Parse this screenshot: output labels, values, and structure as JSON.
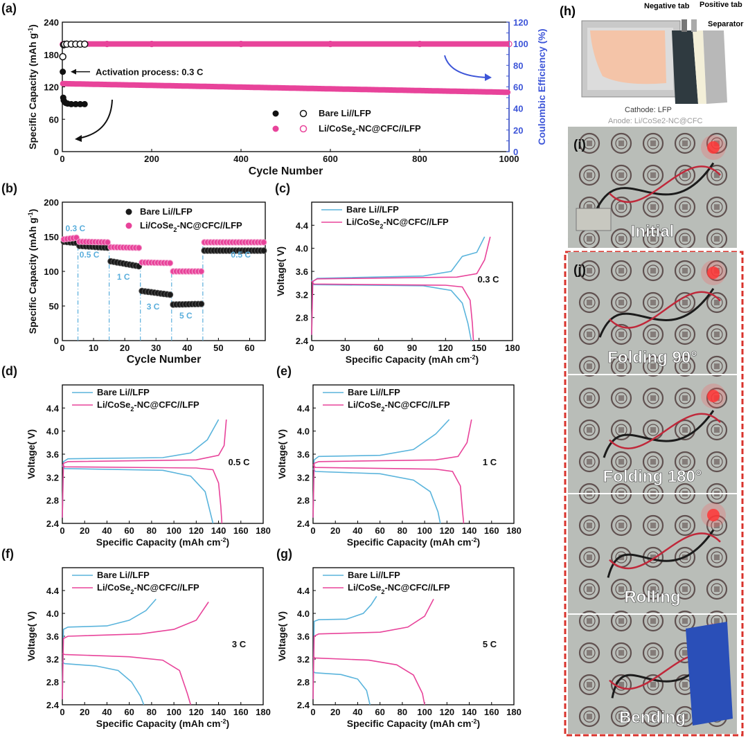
{
  "colors": {
    "bare": "#5ab4dc",
    "cose": "#e8439a",
    "black": "#111111",
    "blue": "#3d55d8",
    "rate": "#5aaedc",
    "frame": "#d9332c"
  },
  "chart_data": [
    {
      "id": "a",
      "type": "scatter",
      "panel_label": "(a)",
      "xlabel": "Cycle Number",
      "ylabel": "Specific Capacity (mAh g-1)",
      "y2label": "Coulombic Efficiency (%)",
      "xlim": [
        0,
        1000
      ],
      "ylim": [
        0,
        240
      ],
      "y2lim": [
        0,
        120
      ],
      "xticks": [
        0,
        200,
        400,
        600,
        800,
        1000
      ],
      "yticks": [
        0,
        60,
        120,
        180,
        240
      ],
      "y2ticks": [
        0,
        10,
        20,
        30,
        40,
        50,
        60,
        70,
        80,
        90,
        100,
        110,
        120
      ],
      "annotation": "Activation process: 0.3 C",
      "legend": [
        "Bare Li//LFP",
        "Li/CoSe2-NC@CFC//LFP"
      ],
      "legend_position": "right",
      "series": [
        {
          "name": "Bare Li//LFP",
          "axis": "capacity",
          "x": [
            1,
            2,
            3,
            5,
            8,
            12,
            20,
            30,
            40,
            50
          ],
          "y": [
            148,
            100,
            95,
            92,
            90,
            89,
            88,
            88,
            88,
            88
          ]
        },
        {
          "name": "Bare Li//LFP",
          "axis": "efficiency",
          "x": [
            1,
            3,
            5,
            10,
            20,
            30,
            40,
            50
          ],
          "y": [
            88,
            99,
            99.5,
            99.6,
            99.6,
            99.6,
            99.6,
            99.6
          ]
        },
        {
          "name": "Li/CoSe2-NC@CFC//LFP",
          "axis": "capacity",
          "x": [
            1,
            10,
            100,
            200,
            300,
            400,
            500,
            600,
            700,
            800,
            900,
            1000
          ],
          "y": [
            126,
            125,
            124,
            122,
            120,
            118,
            116,
            114,
            113,
            112,
            111,
            110
          ]
        },
        {
          "name": "Li/CoSe2-NC@CFC//LFP",
          "axis": "efficiency",
          "x": [
            1,
            10,
            100,
            200,
            400,
            600,
            800,
            1000
          ],
          "y": [
            99.5,
            99.8,
            99.8,
            99.8,
            99.8,
            99.8,
            99.8,
            99.8
          ]
        }
      ]
    },
    {
      "id": "b",
      "type": "scatter",
      "panel_label": "(b)",
      "xlabel": "Cycle Number",
      "ylabel": "Specific Capacity (mAh g-1)",
      "xlim": [
        0,
        65
      ],
      "ylim": [
        0,
        200
      ],
      "xticks": [
        0,
        10,
        20,
        30,
        40,
        50,
        60
      ],
      "yticks": [
        0,
        50,
        100,
        150,
        200
      ],
      "legend": [
        "Bare Li//LFP",
        "Li/CoSe2-NC@CFC//LFP"
      ],
      "legend_position": "top-right",
      "rate_labels": [
        {
          "text": "0.3 C",
          "x": 1,
          "y": 158
        },
        {
          "text": "0.5 C",
          "x": 5.5,
          "y": 120
        },
        {
          "text": "1 C",
          "x": 17.5,
          "y": 88
        },
        {
          "text": "3 C",
          "x": 27,
          "y": 45
        },
        {
          "text": "5 C",
          "x": 37.5,
          "y": 32
        },
        {
          "text": "0.5 C",
          "x": 54,
          "y": 120
        }
      ],
      "boundaries": [
        5,
        15,
        25,
        35,
        45
      ],
      "series": [
        {
          "name": "Bare Li//LFP",
          "segments": [
            [
              0,
              5,
              143,
              141
            ],
            [
              5,
              15,
              137,
              134
            ],
            [
              15,
              25,
              115,
              107
            ],
            [
              25,
              35,
              72,
              66
            ],
            [
              35,
              45,
              52,
              53
            ],
            [
              45,
              65,
              130,
              130
            ]
          ]
        },
        {
          "name": "Li/CoSe2-NC@CFC//LFP",
          "segments": [
            [
              0,
              5,
              146,
              149
            ],
            [
              5,
              15,
              143,
              142
            ],
            [
              15,
              25,
              135,
              134
            ],
            [
              25,
              35,
              113,
              112
            ],
            [
              35,
              45,
              100,
              100
            ],
            [
              45,
              65,
              142,
              142
            ]
          ]
        }
      ]
    },
    {
      "id": "c",
      "type": "line",
      "panel_label": "(c)",
      "rate": "0.3 C",
      "xlabel": "Specific Capacity (mAh cm-2)",
      "ylabel": "Voltage( V)",
      "xlim": [
        0,
        180
      ],
      "ylim": [
        2.4,
        4.8
      ],
      "xticks": [
        0,
        30,
        60,
        90,
        120,
        150,
        180
      ],
      "yticks": [
        2.4,
        2.8,
        3.2,
        3.6,
        4.0,
        4.4
      ],
      "legend": [
        "Bare Li//LFP",
        "Li/CoSe2-NC@CFC//LFP"
      ],
      "legend_position": "top-left",
      "series": [
        {
          "name": "Bare Li//LFP",
          "charge": [
            [
              0,
              2.5
            ],
            [
              1,
              3.42
            ],
            [
              5,
              3.48
            ],
            [
              100,
              3.52
            ],
            [
              125,
              3.6
            ],
            [
              135,
              3.86
            ],
            [
              148,
              3.93
            ],
            [
              155,
              4.2
            ]
          ],
          "discharge": [
            [
              0,
              3.45
            ],
            [
              2,
              3.37
            ],
            [
              100,
              3.35
            ],
            [
              125,
              3.27
            ],
            [
              135,
              3.05
            ],
            [
              140,
              2.7
            ],
            [
              143,
              2.4
            ]
          ]
        },
        {
          "name": "Li/CoSe2-NC@CFC//LFP",
          "charge": [
            [
              0,
              2.5
            ],
            [
              1,
              3.43
            ],
            [
              5,
              3.47
            ],
            [
              130,
              3.5
            ],
            [
              148,
              3.56
            ],
            [
              155,
              3.8
            ],
            [
              160,
              4.2
            ]
          ],
          "discharge": [
            [
              0,
              3.43
            ],
            [
              2,
              3.38
            ],
            [
              120,
              3.36
            ],
            [
              135,
              3.33
            ],
            [
              142,
              3.1
            ],
            [
              144,
              2.7
            ],
            [
              145,
              2.4
            ]
          ]
        }
      ]
    },
    {
      "id": "d",
      "type": "line",
      "panel_label": "(d)",
      "rate": "0.5 C",
      "xlabel": "Specific Capacity (mAh cm-2)",
      "ylabel": "Voltage( V)",
      "xlim": [
        0,
        180
      ],
      "ylim": [
        2.4,
        4.8
      ],
      "xticks": [
        0,
        20,
        40,
        60,
        80,
        100,
        120,
        140,
        160,
        180
      ],
      "yticks": [
        2.4,
        2.8,
        3.2,
        3.6,
        4.0,
        4.4
      ],
      "legend": [
        "Bare Li//LFP",
        "Li/CoSe2-NC@CFC//LFP"
      ],
      "legend_position": "top-left",
      "series": [
        {
          "name": "Bare Li//LFP",
          "charge": [
            [
              0,
              2.5
            ],
            [
              1,
              3.47
            ],
            [
              5,
              3.52
            ],
            [
              90,
              3.54
            ],
            [
              115,
              3.62
            ],
            [
              130,
              3.85
            ],
            [
              140,
              4.2
            ]
          ],
          "discharge": [
            [
              0,
              3.4
            ],
            [
              2,
              3.35
            ],
            [
              90,
              3.32
            ],
            [
              115,
              3.22
            ],
            [
              128,
              2.95
            ],
            [
              135,
              2.4
            ]
          ]
        },
        {
          "name": "Li/CoSe2-NC@CFC//LFP",
          "charge": [
            [
              0,
              2.5
            ],
            [
              1,
              3.44
            ],
            [
              5,
              3.47
            ],
            [
              120,
              3.5
            ],
            [
              140,
              3.58
            ],
            [
              145,
              3.75
            ],
            [
              147,
              4.2
            ]
          ],
          "discharge": [
            [
              0,
              3.42
            ],
            [
              2,
              3.38
            ],
            [
              120,
              3.36
            ],
            [
              135,
              3.33
            ],
            [
              140,
              3.1
            ],
            [
              142,
              2.7
            ],
            [
              143,
              2.4
            ]
          ]
        }
      ]
    },
    {
      "id": "e",
      "type": "line",
      "panel_label": "(e)",
      "rate": "1 C",
      "xlabel": "Specific Capacity (mAh cm-2)",
      "ylabel": "Voltage( V)",
      "xlim": [
        0,
        180
      ],
      "ylim": [
        2.4,
        4.8
      ],
      "xticks": [
        0,
        20,
        40,
        60,
        80,
        100,
        120,
        140,
        160,
        180
      ],
      "yticks": [
        2.4,
        2.8,
        3.2,
        3.6,
        4.0,
        4.4
      ],
      "legend": [
        "Bare Li//LFP",
        "Li/CoSe2-NC@CFC//LFP"
      ],
      "legend_position": "top-left",
      "series": [
        {
          "name": "Bare Li//LFP",
          "charge": [
            [
              0,
              2.5
            ],
            [
              1,
              3.5
            ],
            [
              5,
              3.56
            ],
            [
              60,
              3.58
            ],
            [
              90,
              3.68
            ],
            [
              110,
              3.95
            ],
            [
              122,
              4.2
            ]
          ],
          "discharge": [
            [
              0,
              3.35
            ],
            [
              2,
              3.3
            ],
            [
              60,
              3.26
            ],
            [
              90,
              3.15
            ],
            [
              105,
              2.95
            ],
            [
              112,
              2.6
            ],
            [
              114,
              2.4
            ]
          ]
        },
        {
          "name": "Li/CoSe2-NC@CFC//LFP",
          "charge": [
            [
              0,
              2.5
            ],
            [
              1,
              3.44
            ],
            [
              5,
              3.47
            ],
            [
              110,
              3.5
            ],
            [
              130,
              3.56
            ],
            [
              138,
              3.8
            ],
            [
              142,
              4.2
            ]
          ],
          "discharge": [
            [
              0,
              3.42
            ],
            [
              2,
              3.37
            ],
            [
              110,
              3.34
            ],
            [
              125,
              3.3
            ],
            [
              132,
              3.05
            ],
            [
              134,
              2.6
            ],
            [
              135,
              2.4
            ]
          ]
        }
      ]
    },
    {
      "id": "f",
      "type": "line",
      "panel_label": "(f)",
      "rate": "3 C",
      "xlabel": "Specific Capacity (mAh cm-2)",
      "ylabel": "Voltage( V)",
      "xlim": [
        0,
        180
      ],
      "ylim": [
        2.4,
        4.8
      ],
      "xticks": [
        0,
        20,
        40,
        60,
        80,
        100,
        120,
        140,
        160,
        180
      ],
      "yticks": [
        2.4,
        2.8,
        3.2,
        3.6,
        4.0,
        4.4
      ],
      "legend": [
        "Bare Li//LFP",
        "Li/CoSe2-NC@CFC//LFP"
      ],
      "legend_position": "top-left",
      "series": [
        {
          "name": "Bare Li//LFP",
          "charge": [
            [
              0,
              2.5
            ],
            [
              1,
              3.72
            ],
            [
              5,
              3.76
            ],
            [
              40,
              3.78
            ],
            [
              60,
              3.88
            ],
            [
              75,
              4.05
            ],
            [
              84,
              4.25
            ]
          ],
          "discharge": [
            [
              0,
              3.15
            ],
            [
              2,
              3.12
            ],
            [
              30,
              3.08
            ],
            [
              50,
              3.0
            ],
            [
              62,
              2.8
            ],
            [
              70,
              2.55
            ],
            [
              73,
              2.4
            ]
          ]
        },
        {
          "name": "Li/CoSe2-NC@CFC//LFP",
          "charge": [
            [
              0,
              2.5
            ],
            [
              1,
              3.56
            ],
            [
              5,
              3.6
            ],
            [
              70,
              3.64
            ],
            [
              100,
              3.72
            ],
            [
              120,
              3.88
            ],
            [
              131,
              4.2
            ]
          ],
          "discharge": [
            [
              0,
              3.3
            ],
            [
              2,
              3.28
            ],
            [
              60,
              3.24
            ],
            [
              90,
              3.18
            ],
            [
              105,
              3.0
            ],
            [
              112,
              2.6
            ],
            [
              115,
              2.4
            ]
          ]
        }
      ]
    },
    {
      "id": "g",
      "type": "line",
      "panel_label": "(g)",
      "rate": "5 C",
      "xlabel": "Specific Capacity (mAh cm-2)",
      "ylabel": "Voltage( V)",
      "xlim": [
        0,
        180
      ],
      "ylim": [
        2.4,
        4.8
      ],
      "xticks": [
        0,
        20,
        40,
        60,
        80,
        100,
        120,
        140,
        160,
        180
      ],
      "yticks": [
        2.4,
        2.8,
        3.2,
        3.6,
        4.0,
        4.4
      ],
      "legend": [
        "Bare Li//LFP",
        "Li/CoSe2-NC@CFC//LFP"
      ],
      "legend_position": "top-left",
      "series": [
        {
          "name": "Bare Li//LFP",
          "charge": [
            [
              0,
              2.5
            ],
            [
              1,
              3.86
            ],
            [
              5,
              3.89
            ],
            [
              30,
              3.9
            ],
            [
              45,
              4.0
            ],
            [
              52,
              4.15
            ],
            [
              57,
              4.3
            ]
          ],
          "discharge": [
            [
              0,
              2.98
            ],
            [
              2,
              2.96
            ],
            [
              25,
              2.93
            ],
            [
              40,
              2.85
            ],
            [
              48,
              2.65
            ],
            [
              51,
              2.4
            ]
          ]
        },
        {
          "name": "Li/CoSe2-NC@CFC//LFP",
          "charge": [
            [
              0,
              2.5
            ],
            [
              1,
              3.6
            ],
            [
              5,
              3.64
            ],
            [
              60,
              3.67
            ],
            [
              85,
              3.76
            ],
            [
              100,
              3.95
            ],
            [
              108,
              4.25
            ]
          ],
          "discharge": [
            [
              0,
              3.24
            ],
            [
              2,
              3.22
            ],
            [
              50,
              3.18
            ],
            [
              75,
              3.1
            ],
            [
              90,
              2.92
            ],
            [
              98,
              2.6
            ],
            [
              100,
              2.4
            ]
          ]
        }
      ]
    }
  ],
  "illustration": {
    "panel_label": "(h)",
    "labels": {
      "negative_tab": "Negative tab",
      "positive_tab": "Positive tab",
      "separator": "Separator",
      "cathode": "Cathode: LFP",
      "anode": "Anode: Li/CoSe2-NC@CFC"
    }
  },
  "photos": [
    {
      "panel_label": "(i)",
      "caption": "Initial"
    },
    {
      "panel_label": "(j)",
      "caption": "Folding 90°"
    },
    {
      "panel_label": "",
      "caption": "Folding 180°"
    },
    {
      "panel_label": "",
      "caption": "Rolling"
    },
    {
      "panel_label": "",
      "caption": "Bending"
    }
  ]
}
